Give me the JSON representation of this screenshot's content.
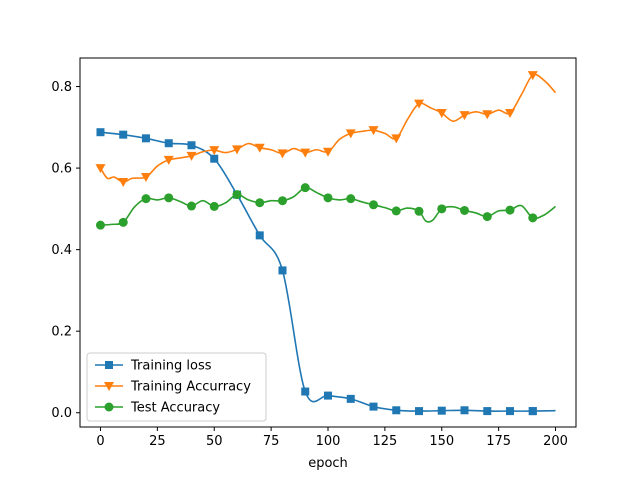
{
  "chart_data": {
    "type": "line",
    "title": "",
    "xlabel": "epoch",
    "ylabel": "",
    "xlim": [
      -9,
      209
    ],
    "ylim": [
      -0.035,
      0.87
    ],
    "xticks": [
      0,
      25,
      50,
      75,
      100,
      125,
      150,
      175,
      200
    ],
    "yticks": [
      0.0,
      0.2,
      0.4,
      0.6,
      0.8
    ],
    "xtick_labels": [
      "0",
      "25",
      "50",
      "75",
      "100",
      "125",
      "150",
      "175",
      "200"
    ],
    "ytick_labels": [
      "0.0",
      "0.2",
      "0.4",
      "0.6",
      "0.8"
    ],
    "grid": false,
    "legend_position": "lower-left",
    "series": [
      {
        "name": "Training loss",
        "color": "#1f77b4",
        "marker": "square",
        "x": [
          0,
          10,
          20,
          30,
          40,
          50,
          60,
          70,
          80,
          90,
          100,
          110,
          120,
          130,
          140,
          150,
          160,
          170,
          180,
          190,
          200
        ],
        "values": [
          0.688,
          0.682,
          0.673,
          0.661,
          0.656,
          0.623,
          0.535,
          0.435,
          0.349,
          0.052,
          0.042,
          0.034,
          0.015,
          0.006,
          0.004,
          0.005,
          0.006,
          0.004,
          0.004,
          0.004,
          0.005
        ],
        "marker_every": 20
      },
      {
        "name": "Training Accurracy",
        "color": "#ff7f0e",
        "marker": "triangle-down",
        "x": [
          0,
          3,
          6,
          10,
          14,
          20,
          25,
          30,
          35,
          40,
          45,
          50,
          55,
          60,
          65,
          70,
          75,
          80,
          85,
          90,
          95,
          100,
          105,
          110,
          115,
          120,
          125,
          130,
          135,
          140,
          145,
          150,
          155,
          160,
          165,
          170,
          175,
          180,
          185,
          190,
          195,
          200
        ],
        "values": [
          0.6,
          0.575,
          0.578,
          0.566,
          0.575,
          0.578,
          0.605,
          0.62,
          0.625,
          0.63,
          0.64,
          0.644,
          0.638,
          0.646,
          0.66,
          0.65,
          0.645,
          0.636,
          0.648,
          0.638,
          0.645,
          0.64,
          0.67,
          0.685,
          0.69,
          0.693,
          0.685,
          0.673,
          0.72,
          0.758,
          0.748,
          0.735,
          0.715,
          0.73,
          0.738,
          0.732,
          0.742,
          0.735,
          0.78,
          0.828,
          0.815,
          0.785
        ],
        "marker_x": [
          0,
          10,
          20,
          30,
          40,
          50,
          60,
          70,
          80,
          90,
          100,
          110,
          120,
          130,
          140,
          150,
          160,
          170,
          180,
          190
        ],
        "marker_values": [
          0.6,
          0.566,
          0.578,
          0.62,
          0.63,
          0.644,
          0.646,
          0.65,
          0.636,
          0.638,
          0.64,
          0.685,
          0.693,
          0.673,
          0.758,
          0.735,
          0.73,
          0.732,
          0.735,
          0.828
        ]
      },
      {
        "name": "Test Accuracy",
        "color": "#2ca02c",
        "marker": "circle",
        "x": [
          0,
          5,
          10,
          15,
          20,
          25,
          30,
          35,
          40,
          45,
          50,
          55,
          60,
          65,
          70,
          75,
          80,
          85,
          90,
          95,
          100,
          105,
          110,
          115,
          120,
          125,
          130,
          135,
          140,
          143,
          146,
          150,
          155,
          160,
          165,
          170,
          175,
          180,
          185,
          190,
          195,
          200
        ],
        "values": [
          0.46,
          0.462,
          0.467,
          0.505,
          0.525,
          0.522,
          0.527,
          0.518,
          0.507,
          0.52,
          0.506,
          0.515,
          0.535,
          0.522,
          0.515,
          0.52,
          0.52,
          0.53,
          0.552,
          0.54,
          0.527,
          0.522,
          0.525,
          0.517,
          0.51,
          0.503,
          0.495,
          0.502,
          0.494,
          0.47,
          0.472,
          0.5,
          0.505,
          0.496,
          0.49,
          0.481,
          0.495,
          0.497,
          0.508,
          0.478,
          0.485,
          0.506
        ],
        "marker_x": [
          0,
          10,
          20,
          30,
          40,
          50,
          60,
          70,
          80,
          90,
          100,
          110,
          120,
          130,
          140,
          150,
          160,
          170,
          180,
          190
        ],
        "marker_values": [
          0.46,
          0.467,
          0.525,
          0.527,
          0.507,
          0.506,
          0.535,
          0.515,
          0.52,
          0.552,
          0.527,
          0.525,
          0.51,
          0.495,
          0.494,
          0.5,
          0.496,
          0.481,
          0.497,
          0.478
        ]
      }
    ]
  }
}
